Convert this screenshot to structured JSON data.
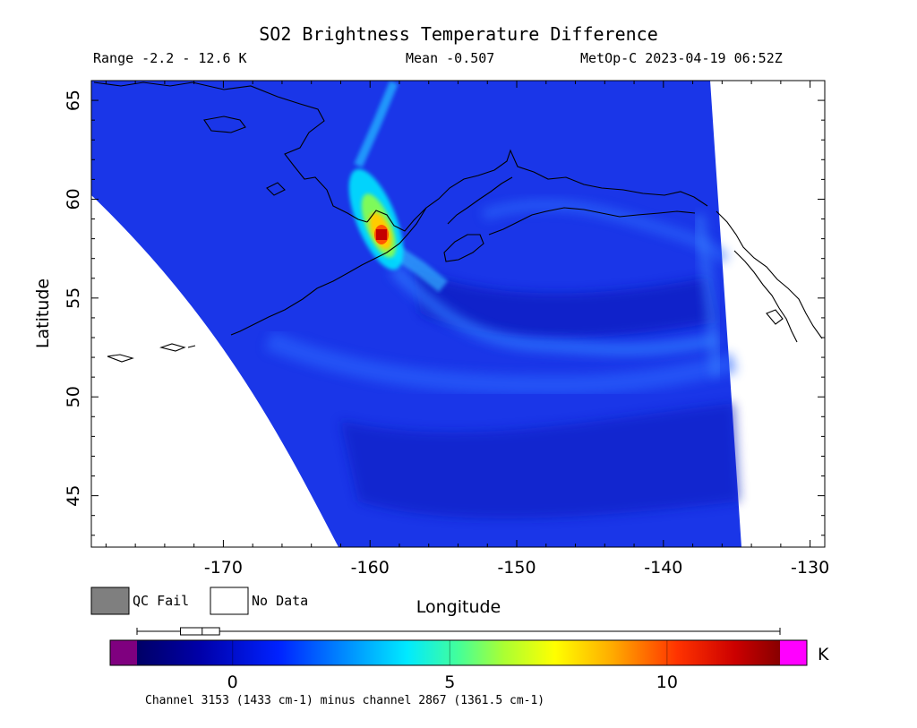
{
  "title": "SO2 Brightness Temperature Difference",
  "header": {
    "range": "Range -2.2 - 12.6 K",
    "mean": "Mean -0.507",
    "instrument": "MetOp-C 2023-04-19 06:52Z"
  },
  "map": {
    "lon_range": [
      -179,
      -129
    ],
    "lat_range": [
      42.4,
      66
    ],
    "x_label": "Longitude",
    "y_label": "Latitude",
    "x_ticks": [
      -170,
      -160,
      -150,
      -140,
      -130
    ],
    "y_ticks": [
      45,
      50,
      55,
      60,
      65
    ],
    "x_tick_labels": [
      "-170",
      "-160",
      "-150",
      "-140",
      "-130"
    ],
    "y_tick_labels": [
      "45",
      "50",
      "55",
      "60",
      "65"
    ],
    "plume_max_k": 12.6,
    "plume_center": {
      "lon": -159.5,
      "lat": 58.0
    }
  },
  "legend": {
    "qc_fail_label": "QC Fail",
    "no_data_label": "No Data",
    "qc_fail_color": "#7f7f7f",
    "no_data_color": "#ffffff"
  },
  "colorbar": {
    "range": [
      -2.2,
      12.6
    ],
    "ticks": [
      0,
      5,
      10
    ],
    "tick_labels": [
      "0",
      "5",
      "10"
    ],
    "unit": "K",
    "underflow_color": "#7f007f",
    "overflow_color": "#ff00ff",
    "boxplot": {
      "q1": -1.2,
      "median": -0.7,
      "q3": -0.3
    },
    "caption": "Channel 3153 (1433 cm-1) minus channel 2867 (1361.5 cm-1)"
  }
}
